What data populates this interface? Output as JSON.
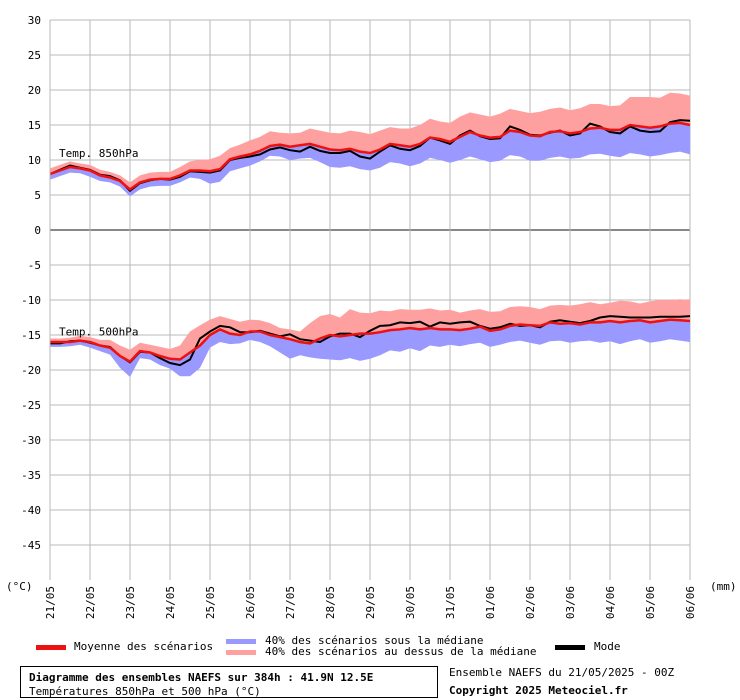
{
  "chart_data": {
    "type": "area",
    "title": "Diagramme des ensembles NAEFS sur 384h : 41.9N 12.5E",
    "subtitle": "Températures 850hPa et 500 hPa (°C)",
    "ylabel": "(°C)",
    "right_label": "(mm)",
    "ylim": [
      -50,
      30
    ],
    "yticks": [
      30,
      25,
      20,
      15,
      10,
      5,
      0,
      -5,
      -10,
      -15,
      -20,
      -25,
      -30,
      -35,
      -40,
      -45
    ],
    "xlim": [
      0,
      16
    ],
    "xticks": [
      "21/05",
      "22/05",
      "23/05",
      "24/05",
      "25/05",
      "26/05",
      "27/05",
      "28/05",
      "29/05",
      "30/05",
      "31/05",
      "01/06",
      "02/06",
      "03/06",
      "04/06",
      "05/06",
      "06/06"
    ],
    "grid": true,
    "x": [
      0,
      0.25,
      0.5,
      0.75,
      1,
      1.25,
      1.5,
      1.75,
      2,
      2.25,
      2.5,
      2.75,
      3,
      3.25,
      3.5,
      3.75,
      4,
      4.25,
      4.5,
      4.75,
      5,
      5.25,
      5.5,
      5.75,
      6,
      6.25,
      6.5,
      6.75,
      7,
      7.25,
      7.5,
      7.75,
      8,
      8.25,
      8.5,
      8.75,
      9,
      9.25,
      9.5,
      9.75,
      10,
      10.25,
      10.5,
      10.75,
      11,
      11.25,
      11.5,
      11.75,
      12,
      12.25,
      12.5,
      12.75,
      13,
      13.25,
      13.5,
      13.75,
      14,
      14.25,
      14.5,
      14.75,
      15,
      15.25,
      15.5,
      15.75,
      16
    ],
    "groups": [
      {
        "label": "Temp. 850hPa",
        "label_y": 11,
        "mean": [
          8,
          8.5,
          9,
          8.8,
          8.5,
          7.8,
          7.5,
          7,
          5.8,
          6.8,
          7.2,
          7.3,
          7.3,
          7.8,
          8.5,
          8.5,
          8.4,
          8.7,
          10.1,
          10.5,
          10.8,
          11.3,
          12,
          12.2,
          11.9,
          12.1,
          12.3,
          11.9,
          11.5,
          11.4,
          11.6,
          11.2,
          11,
          11.5,
          12.3,
          12.1,
          11.9,
          12.3,
          13.2,
          13,
          12.6,
          13.3,
          14,
          13.5,
          13.2,
          13.3,
          14.2,
          14,
          13.5,
          13.4,
          14,
          14.1,
          13.8,
          14,
          14.5,
          14.6,
          14.3,
          14.3,
          15,
          14.8,
          14.6,
          14.8,
          15.2,
          15.3,
          15
        ],
        "upper": [
          8.8,
          9.3,
          9.8,
          9.5,
          9.3,
          8.6,
          8.3,
          7.8,
          6.8,
          7.8,
          8.2,
          8.3,
          8.3,
          9,
          9.8,
          10,
          10.1,
          10.6,
          11.7,
          12.2,
          12.8,
          13.3,
          14.1,
          13.9,
          13.8,
          13.9,
          14.5,
          14.2,
          13.9,
          13.8,
          14.2,
          14,
          13.7,
          14.2,
          14.7,
          14.5,
          14.5,
          15,
          15.9,
          15.5,
          15.3,
          16.2,
          16.8,
          16.5,
          16.2,
          16.6,
          17.3,
          17,
          16.7,
          16.9,
          17.3,
          17.5,
          17.1,
          17.4,
          18,
          18,
          17.7,
          17.8,
          19,
          19,
          19,
          18.9,
          19.6,
          19.5,
          19.2
        ],
        "lower": [
          7.2,
          7.7,
          8.2,
          8.1,
          7.6,
          7,
          6.8,
          6.2,
          4.8,
          5.8,
          6.2,
          6.3,
          6.3,
          6.8,
          7.5,
          7.3,
          6.6,
          6.9,
          8.4,
          8.8,
          9.2,
          9.8,
          10.6,
          10.5,
          10,
          10.2,
          10.3,
          9.7,
          9,
          8.9,
          9.1,
          8.7,
          8.5,
          8.9,
          9.7,
          9.5,
          9.1,
          9.5,
          10.3,
          10,
          9.6,
          10,
          10.5,
          10.1,
          9.7,
          9.9,
          10.7,
          10.5,
          9.9,
          9.9,
          10.3,
          10.5,
          10.2,
          10.3,
          10.8,
          10.9,
          10.6,
          10.4,
          11,
          10.8,
          10.5,
          10.7,
          11,
          11.2,
          10.8
        ],
        "mode": [
          8,
          8.6,
          9.2,
          8.9,
          8.6,
          7.9,
          7.7,
          7.1,
          5.6,
          6.7,
          7.1,
          7.3,
          7.2,
          7.6,
          8.4,
          8.3,
          8.2,
          8.5,
          10,
          10.3,
          10.5,
          10.8,
          11.5,
          11.8,
          11.4,
          11.2,
          11.9,
          11.3,
          11,
          11,
          11.3,
          10.5,
          10.2,
          11.2,
          12.1,
          11.6,
          11.4,
          12,
          13.2,
          12.8,
          12.3,
          13.5,
          14.2,
          13.4,
          13,
          13.1,
          14.8,
          14.3,
          13.6,
          13.5,
          13.9,
          14.2,
          13.5,
          13.8,
          15.2,
          14.8,
          14,
          13.8,
          14.8,
          14.2,
          14,
          14.1,
          15.4,
          15.7,
          15.6
        ]
      },
      {
        "label": "Temp. 500hPa",
        "label_y": -14.5,
        "mean": [
          -16,
          -16,
          -16,
          -15.8,
          -16,
          -16.5,
          -16.8,
          -18,
          -18.8,
          -17.3,
          -17.5,
          -18,
          -18.4,
          -18.5,
          -17.5,
          -16.5,
          -15,
          -14.2,
          -14.8,
          -15,
          -14.5,
          -14.5,
          -15,
          -15.3,
          -15.6,
          -16,
          -16.2,
          -15.5,
          -15,
          -15.2,
          -15,
          -14.8,
          -14.8,
          -14.6,
          -14.3,
          -14.2,
          -14,
          -14.2,
          -14,
          -14.2,
          -14.2,
          -14.3,
          -14.1,
          -13.8,
          -14.4,
          -14.2,
          -13.7,
          -13.5,
          -13.6,
          -13.7,
          -13.2,
          -13.4,
          -13.3,
          -13.5,
          -13.2,
          -13.2,
          -13,
          -13.2,
          -13,
          -12.9,
          -13.2,
          -13,
          -12.8,
          -12.9,
          -13
        ],
        "upper": [
          -15.5,
          -15.5,
          -15.4,
          -15.1,
          -15.3,
          -15.7,
          -15.7,
          -16.5,
          -17.1,
          -16.1,
          -16.4,
          -16.7,
          -17,
          -16.5,
          -14.5,
          -13.6,
          -12.8,
          -12.3,
          -12.7,
          -13.1,
          -12.8,
          -12.9,
          -13.3,
          -14,
          -14.2,
          -14.5,
          -13.3,
          -12.3,
          -12,
          -12.5,
          -11.3,
          -11.8,
          -11.9,
          -11.5,
          -11.6,
          -11.3,
          -11.4,
          -11.4,
          -11.2,
          -11.5,
          -11.4,
          -11.8,
          -11.5,
          -11.3,
          -11.7,
          -11.6,
          -11,
          -10.9,
          -11,
          -11.3,
          -10.8,
          -10.7,
          -10.8,
          -10.6,
          -10.3,
          -10.6,
          -10.4,
          -10.1,
          -10.2,
          -10.5,
          -10.2,
          -10,
          -10,
          -9.9,
          -10
        ],
        "lower": [
          -16.7,
          -16.7,
          -16.6,
          -16.4,
          -16.8,
          -17.3,
          -17.8,
          -19.7,
          -21,
          -18.3,
          -18.5,
          -19.3,
          -19.8,
          -20.9,
          -20.9,
          -19.7,
          -16.8,
          -16,
          -16.3,
          -16.2,
          -15.7,
          -16,
          -16.6,
          -17.5,
          -18.4,
          -17.9,
          -18.2,
          -18.4,
          -18.5,
          -18.6,
          -18.3,
          -18.7,
          -18.4,
          -17.9,
          -17.2,
          -17.4,
          -16.9,
          -17.3,
          -16.5,
          -16.7,
          -16.4,
          -16.6,
          -16.3,
          -16.1,
          -16.7,
          -16.4,
          -16,
          -15.8,
          -16.1,
          -16.4,
          -15.9,
          -15.8,
          -16.1,
          -15.9,
          -15.8,
          -16.1,
          -15.9,
          -16.3,
          -15.9,
          -15.6,
          -16.1,
          -15.9,
          -15.6,
          -15.8,
          -16
        ],
        "mode": [
          -16.2,
          -16.2,
          -15.9,
          -15.8,
          -16.1,
          -16.5,
          -16.7,
          -18,
          -18.9,
          -17.4,
          -17.5,
          -18.3,
          -19,
          -19.3,
          -18.5,
          -15.5,
          -14.5,
          -13.7,
          -13.9,
          -14.6,
          -14.6,
          -14.4,
          -14.8,
          -15.2,
          -14.9,
          -15.6,
          -15.8,
          -16,
          -15.2,
          -14.8,
          -14.8,
          -15.3,
          -14.4,
          -13.7,
          -13.6,
          -13.2,
          -13.3,
          -13.1,
          -13.8,
          -13.2,
          -13.4,
          -13.2,
          -13.1,
          -13.7,
          -14.1,
          -13.9,
          -13.4,
          -13.7,
          -13.6,
          -13.9,
          -13.1,
          -12.9,
          -13.1,
          -13.3,
          -13,
          -12.5,
          -12.3,
          -12.4,
          -12.5,
          -12.5,
          -12.5,
          -12.4,
          -12.4,
          -12.4,
          -12.3
        ]
      }
    ],
    "series": [
      {
        "name": "Moyenne des scénarios",
        "color": "#ee1111"
      },
      {
        "name": "40% des scénarios sous la médiane",
        "color": "#9999ff"
      },
      {
        "name": "40% des scénarios au dessus de la médiane",
        "color": "#ffa0a0"
      },
      {
        "name": "Mode",
        "color": "#000000"
      }
    ]
  },
  "footer": {
    "title": "Diagramme des ensembles NAEFS sur 384h : 41.9N 12.5E",
    "subtitle": "Températures 850hPa et 500 hPa (°C)",
    "run": "Ensemble NAEFS du 21/05/2025 - 00Z",
    "copyright": "Copyright 2025 Meteociel.fr"
  },
  "colors": {
    "grid": "#b8b8b8",
    "mean": "#ee1111",
    "lower_band": "#9999ff",
    "upper_band": "#ffa0a0",
    "mode": "#000000"
  }
}
